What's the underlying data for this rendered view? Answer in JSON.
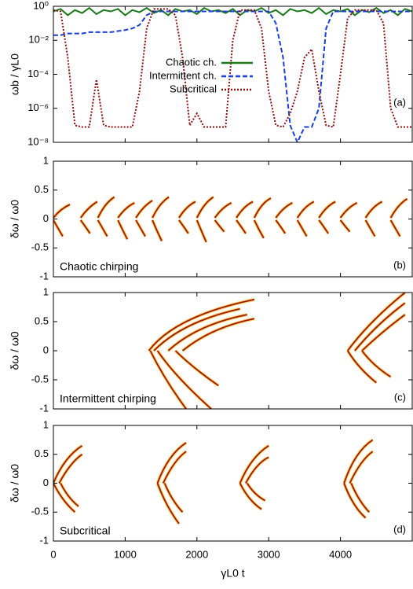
{
  "chart_data": [
    {
      "type": "line",
      "log_y": true,
      "legend": "center",
      "y_label": "ωb / γL0",
      "annotation": "(a)",
      "xlim": [
        0,
        5000
      ],
      "ylim": [
        1e-08,
        1
      ],
      "yticks": [
        {
          "value": 1,
          "label": "10⁰"
        },
        {
          "value": 0.01,
          "label": "10⁻²"
        },
        {
          "value": 0.0001,
          "label": "10⁻⁴"
        },
        {
          "value": 1e-06,
          "label": "10⁻⁶"
        },
        {
          "value": 1e-08,
          "label": "10⁻⁸"
        }
      ],
      "x": [
        0,
        100,
        200,
        300,
        400,
        500,
        600,
        700,
        800,
        900,
        1000,
        1100,
        1200,
        1300,
        1400,
        1500,
        1600,
        1700,
        1800,
        1900,
        2000,
        2100,
        2200,
        2300,
        2400,
        2500,
        2600,
        2700,
        2800,
        2900,
        3000,
        3100,
        3200,
        3300,
        3400,
        3500,
        3600,
        3700,
        3800,
        3900,
        4000,
        4100,
        4200,
        4300,
        4400,
        4500,
        4600,
        4700,
        4800,
        4900,
        5000
      ],
      "series": [
        {
          "name": "Chaotic ch.",
          "color": "#1a7a1a",
          "style": "solid",
          "values": [
            0.5,
            0.7,
            0.3,
            0.6,
            0.4,
            0.8,
            0.35,
            0.6,
            0.5,
            0.7,
            0.3,
            0.6,
            0.45,
            0.8,
            0.4,
            0.6,
            0.3,
            0.7,
            0.5,
            0.6,
            0.35,
            0.8,
            0.5,
            0.6,
            0.4,
            0.7,
            0.3,
            0.6,
            0.5,
            0.8,
            0.4,
            0.6,
            0.3,
            0.7,
            0.5,
            0.6,
            0.4,
            0.8,
            0.35,
            0.6,
            0.5,
            0.7,
            0.3,
            0.6,
            0.45,
            0.8,
            0.4,
            0.6,
            0.3,
            0.7,
            0.5
          ]
        },
        {
          "name": "Intermittent ch.",
          "color": "#1a3fd6",
          "style": "dashed",
          "values": [
            0.02,
            0.02,
            0.025,
            0.025,
            0.025,
            0.03,
            0.03,
            0.03,
            0.03,
            0.035,
            0.04,
            0.05,
            0.08,
            0.3,
            0.5,
            0.5,
            0.5,
            0.5,
            0.5,
            0.5,
            0.5,
            0.5,
            0.5,
            0.5,
            0.5,
            0.5,
            0.5,
            0.5,
            0.5,
            0.5,
            0.5,
            0.1,
            0.001,
            1e-07,
            1e-08,
            8e-08,
            8e-08,
            1e-06,
            0.05,
            0.5,
            0.5,
            0.5,
            0.5,
            0.5,
            0.5,
            0.5,
            0.5,
            0.5,
            0.5,
            0.5,
            0.5
          ]
        },
        {
          "name": "Subcritical",
          "color": "#8b1010",
          "style": "dotted",
          "values": [
            0.6,
            0.5,
            0.001,
            1e-07,
            8e-08,
            8e-08,
            5e-05,
            1e-07,
            8e-08,
            8e-08,
            8e-08,
            8e-08,
            1e-05,
            0.05,
            0.7,
            0.7,
            0.7,
            0.3,
            0.001,
            1e-07,
            5e-07,
            8e-08,
            8e-08,
            8e-08,
            8e-08,
            0.01,
            0.6,
            0.6,
            0.6,
            0.05,
            1e-05,
            1e-07,
            8e-08,
            5e-07,
            1e-05,
            0.001,
            0.003,
            1e-05,
            1e-07,
            8e-08,
            0.0001,
            0.2,
            0.6,
            0.6,
            0.6,
            0.6,
            0.1,
            1e-06,
            8e-08,
            8e-08,
            8e-08
          ]
        }
      ]
    },
    {
      "type": "chirp",
      "y_label": "δω / ω0",
      "annotation": "(b)",
      "caption": "Chaotic chirping",
      "color": "#a01800",
      "xlim": [
        0,
        5000
      ],
      "ylim": [
        -1,
        1
      ],
      "yticks": [
        1,
        0.5,
        0,
        -0.5,
        -1
      ],
      "chirps": [
        {
          "x": [
            0,
            100,
            230
          ],
          "y": [
            0.02,
            0.18,
            0.25
          ]
        },
        {
          "x": [
            0,
            60,
            130
          ],
          "y": [
            -0.02,
            -0.15,
            -0.3
          ]
        },
        {
          "x": [
            380,
            480,
            610
          ],
          "y": [
            0.02,
            0.2,
            0.3
          ]
        },
        {
          "x": [
            380,
            440,
            510
          ],
          "y": [
            -0.02,
            -0.12,
            -0.25
          ]
        },
        {
          "x": [
            620,
            720,
            850
          ],
          "y": [
            0.02,
            0.28,
            0.38
          ]
        },
        {
          "x": [
            620,
            680,
            750
          ],
          "y": [
            -0.02,
            -0.15,
            -0.3
          ]
        },
        {
          "x": [
            900,
            1000,
            1130
          ],
          "y": [
            0.02,
            0.2,
            0.28
          ]
        },
        {
          "x": [
            900,
            960,
            1030
          ],
          "y": [
            -0.02,
            -0.18,
            -0.35
          ]
        },
        {
          "x": [
            1150,
            1250,
            1380
          ],
          "y": [
            0.02,
            0.22,
            0.32
          ]
        },
        {
          "x": [
            1150,
            1210,
            1280
          ],
          "y": [
            -0.02,
            -0.15,
            -0.3
          ]
        },
        {
          "x": [
            1380,
            1480,
            1610
          ],
          "y": [
            0.02,
            0.28,
            0.38
          ]
        },
        {
          "x": [
            1380,
            1440,
            1510
          ],
          "y": [
            -0.02,
            -0.2,
            -0.38
          ]
        },
        {
          "x": [
            1750,
            1850,
            1980
          ],
          "y": [
            0.02,
            0.22,
            0.3
          ]
        },
        {
          "x": [
            1750,
            1810,
            1880
          ],
          "y": [
            -0.02,
            -0.12,
            -0.25
          ]
        },
        {
          "x": [
            2000,
            2100,
            2230
          ],
          "y": [
            0.02,
            0.28,
            0.38
          ]
        },
        {
          "x": [
            2000,
            2060,
            2130
          ],
          "y": [
            -0.02,
            -0.2,
            -0.4
          ]
        },
        {
          "x": [
            2250,
            2350,
            2480
          ],
          "y": [
            0.02,
            0.2,
            0.28
          ]
        },
        {
          "x": [
            2250,
            2310,
            2380
          ],
          "y": [
            -0.02,
            -0.12,
            -0.22
          ]
        },
        {
          "x": [
            2550,
            2650,
            2780
          ],
          "y": [
            0.02,
            0.22,
            0.3
          ]
        },
        {
          "x": [
            2550,
            2610,
            2680
          ],
          "y": [
            -0.02,
            -0.12,
            -0.25
          ]
        },
        {
          "x": [
            2800,
            2900,
            3030
          ],
          "y": [
            0.02,
            0.28,
            0.36
          ]
        },
        {
          "x": [
            2800,
            2860,
            2930
          ],
          "y": [
            -0.02,
            -0.18,
            -0.33
          ]
        },
        {
          "x": [
            3100,
            3200,
            3330
          ],
          "y": [
            0.02,
            0.2,
            0.28
          ]
        },
        {
          "x": [
            3100,
            3160,
            3230
          ],
          "y": [
            -0.02,
            -0.12,
            -0.25
          ]
        },
        {
          "x": [
            3400,
            3500,
            3630
          ],
          "y": [
            0.02,
            0.22,
            0.3
          ]
        },
        {
          "x": [
            3400,
            3460,
            3530
          ],
          "y": [
            -0.02,
            -0.15,
            -0.3
          ]
        },
        {
          "x": [
            3700,
            3800,
            3930
          ],
          "y": [
            0.02,
            0.22,
            0.3
          ]
        },
        {
          "x": [
            3700,
            3760,
            3830
          ],
          "y": [
            -0.02,
            -0.12,
            -0.25
          ]
        },
        {
          "x": [
            4000,
            4100,
            4230
          ],
          "y": [
            0.02,
            0.2,
            0.28
          ]
        },
        {
          "x": [
            4000,
            4060,
            4130
          ],
          "y": [
            -0.02,
            -0.12,
            -0.22
          ]
        },
        {
          "x": [
            4350,
            4450,
            4580
          ],
          "y": [
            0.02,
            0.22,
            0.3
          ]
        },
        {
          "x": [
            4350,
            4410,
            4480
          ],
          "y": [
            -0.02,
            -0.15,
            -0.3
          ]
        },
        {
          "x": [
            4700,
            4800,
            4930
          ],
          "y": [
            0.02,
            0.25,
            0.35
          ]
        },
        {
          "x": [
            4700,
            4760,
            4830
          ],
          "y": [
            -0.02,
            -0.15,
            -0.3
          ]
        }
      ]
    },
    {
      "type": "chirp",
      "y_label": "δω / ω0",
      "annotation": "(c)",
      "caption": "Intermittent chirping",
      "color": "#a01800",
      "xlim": [
        0,
        5000
      ],
      "ylim": [
        -1,
        1
      ],
      "yticks": [
        1,
        0.5,
        0,
        -0.5,
        -1
      ],
      "chirps": [
        {
          "x": [
            1330,
            1700,
            2800
          ],
          "y": [
            0,
            0.6,
            0.88
          ]
        },
        {
          "x": [
            1400,
            1800,
            2600
          ],
          "y": [
            0,
            0.5,
            0.72
          ]
        },
        {
          "x": [
            1600,
            2000,
            2700
          ],
          "y": [
            0,
            0.45,
            0.62
          ]
        },
        {
          "x": [
            1800,
            2200,
            2800
          ],
          "y": [
            0,
            0.4,
            0.55
          ]
        },
        {
          "x": [
            1350,
            1550,
            1850
          ],
          "y": [
            0,
            -0.5,
            -1
          ]
        },
        {
          "x": [
            1450,
            1700,
            2200
          ],
          "y": [
            0,
            -0.45,
            -1
          ]
        },
        {
          "x": [
            1700,
            1950,
            2300
          ],
          "y": [
            0,
            -0.3,
            -0.6
          ]
        },
        {
          "x": [
            4100,
            4400,
            4900
          ],
          "y": [
            0,
            0.5,
            1
          ]
        },
        {
          "x": [
            4200,
            4500,
            4900
          ],
          "y": [
            0,
            0.45,
            0.82
          ]
        },
        {
          "x": [
            4300,
            4600,
            4900
          ],
          "y": [
            0,
            0.35,
            0.62
          ]
        },
        {
          "x": [
            4100,
            4250,
            4500
          ],
          "y": [
            0,
            -0.3,
            -0.55
          ]
        },
        {
          "x": [
            4300,
            4450,
            4700
          ],
          "y": [
            0,
            -0.25,
            -0.45
          ]
        }
      ]
    },
    {
      "type": "chirp",
      "y_label": "δω / ω0",
      "annotation": "(d)",
      "caption": "Subcritical",
      "color": "#a01800",
      "xlim": [
        0,
        5000
      ],
      "ylim": [
        -1,
        1
      ],
      "yticks": [
        1,
        0.5,
        0,
        -0.5,
        -1
      ],
      "x_label": "γL0 t",
      "xticks": [
        0,
        1000,
        2000,
        3000,
        4000
      ],
      "chirps": [
        {
          "x": [
            0,
            150,
            400
          ],
          "y": [
            0,
            0.45,
            0.65
          ]
        },
        {
          "x": [
            80,
            230,
            400
          ],
          "y": [
            0,
            0.35,
            0.5
          ]
        },
        {
          "x": [
            0,
            120,
            300
          ],
          "y": [
            0,
            -0.3,
            -0.5
          ]
        },
        {
          "x": [
            100,
            200,
            350
          ],
          "y": [
            0,
            -0.25,
            -0.4
          ]
        },
        {
          "x": [
            1450,
            1600,
            1850
          ],
          "y": [
            0,
            0.5,
            0.7
          ]
        },
        {
          "x": [
            1530,
            1680,
            1850
          ],
          "y": [
            0,
            0.4,
            0.55
          ]
        },
        {
          "x": [
            1450,
            1570,
            1750
          ],
          "y": [
            0,
            -0.4,
            -0.7
          ]
        },
        {
          "x": [
            1550,
            1650,
            1800
          ],
          "y": [
            0,
            -0.3,
            -0.5
          ]
        },
        {
          "x": [
            2600,
            2750,
            3000
          ],
          "y": [
            0,
            0.45,
            0.65
          ]
        },
        {
          "x": [
            2680,
            2830,
            3000
          ],
          "y": [
            0,
            0.35,
            0.45
          ]
        },
        {
          "x": [
            2600,
            2720,
            2900
          ],
          "y": [
            0,
            -0.3,
            -0.45
          ]
        },
        {
          "x": [
            2700,
            2800,
            2950
          ],
          "y": [
            0,
            -0.2,
            -0.3
          ]
        },
        {
          "x": [
            4050,
            4200,
            4450
          ],
          "y": [
            0,
            0.55,
            0.75
          ]
        },
        {
          "x": [
            4130,
            4280,
            4450
          ],
          "y": [
            0,
            0.4,
            0.55
          ]
        },
        {
          "x": [
            4050,
            4170,
            4350
          ],
          "y": [
            0,
            -0.4,
            -0.6
          ]
        },
        {
          "x": [
            4150,
            4250,
            4400
          ],
          "y": [
            0,
            -0.3,
            -0.5
          ]
        }
      ]
    }
  ]
}
